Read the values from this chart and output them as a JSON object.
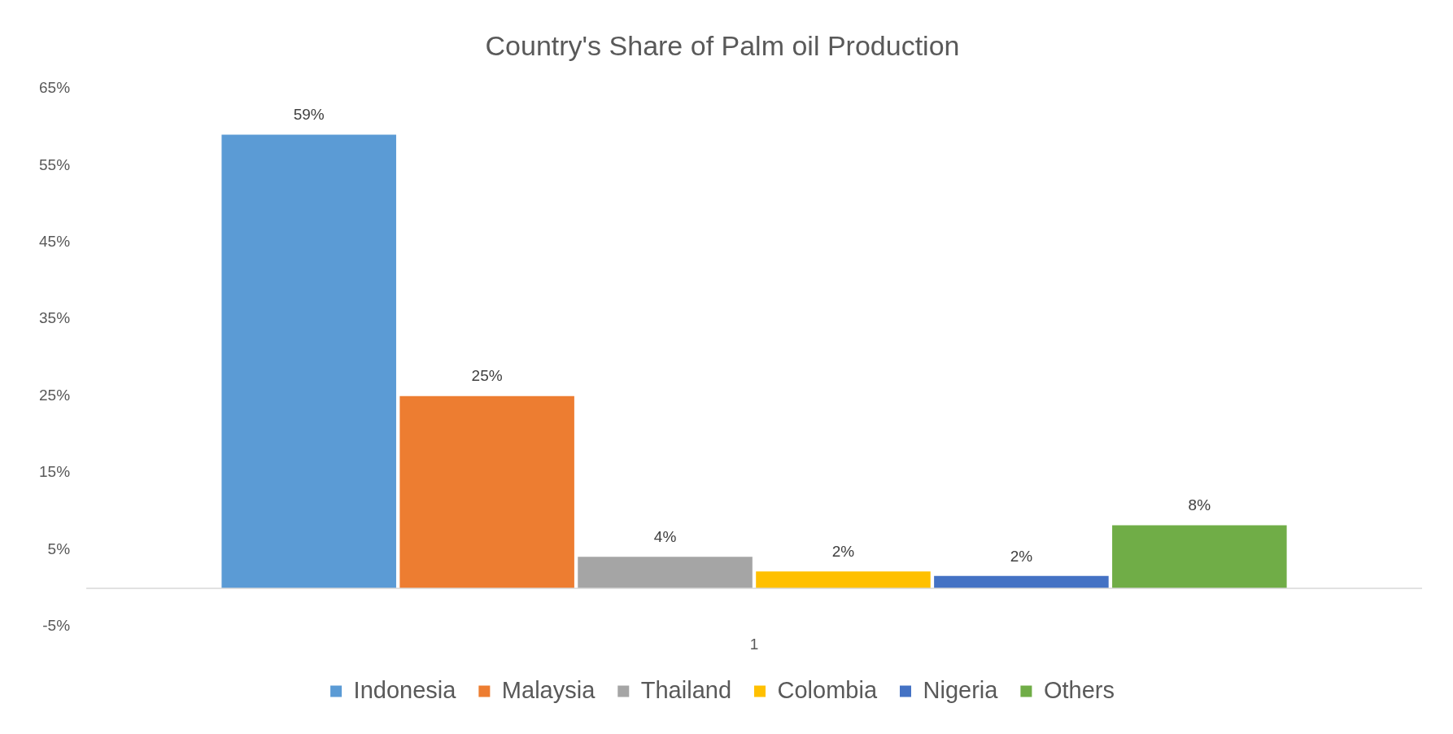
{
  "chart_data": {
    "type": "bar",
    "title": "Country's Share of Palm oil Production",
    "categories": [
      "1"
    ],
    "series": [
      {
        "name": "Indonesia",
        "color": "#5b9bd5",
        "values": [
          59
        ],
        "value_labels": [
          "59%"
        ]
      },
      {
        "name": "Malaysia",
        "color": "#ed7d31",
        "values": [
          25
        ],
        "value_labels": [
          "25%"
        ]
      },
      {
        "name": "Thailand",
        "color": "#a5a5a5",
        "values": [
          4.1
        ],
        "value_labels": [
          "4%"
        ]
      },
      {
        "name": "Colombia",
        "color": "#ffc000",
        "values": [
          2.2
        ],
        "value_labels": [
          "2%"
        ]
      },
      {
        "name": "Nigeria",
        "color": "#4472c4",
        "values": [
          1.6
        ],
        "value_labels": [
          "2%"
        ]
      },
      {
        "name": "Others",
        "color": "#70ad47",
        "values": [
          8.2
        ],
        "value_labels": [
          "8%"
        ]
      }
    ],
    "ylim": [
      -5,
      65
    ],
    "yticks": [
      {
        "value": -5,
        "label": "-5%"
      },
      {
        "value": 5,
        "label": "5%"
      },
      {
        "value": 15,
        "label": "15%"
      },
      {
        "value": 25,
        "label": "25%"
      },
      {
        "value": 35,
        "label": "35%"
      },
      {
        "value": 45,
        "label": "45%"
      },
      {
        "value": 55,
        "label": "55%"
      },
      {
        "value": 65,
        "label": "65%"
      }
    ],
    "grid": false,
    "legend": "bottom"
  }
}
